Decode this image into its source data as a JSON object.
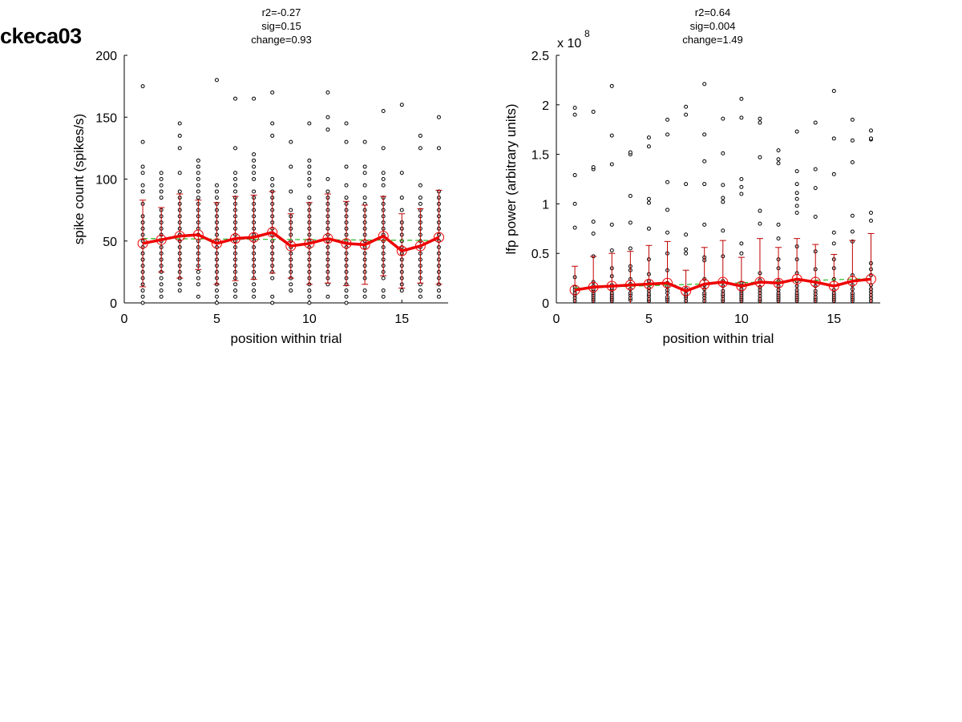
{
  "figure": {
    "title": "ckeca03"
  },
  "colors": {
    "mean_line": "#ee0000",
    "error_bar": "#c00000",
    "trend": "#22bb22",
    "point_edge": "#000000",
    "point_fill": "#ffffff"
  },
  "chart_data": [
    {
      "type": "scatter",
      "id": "spike",
      "title_lines": [
        "r2=-0.27",
        "sig=0.15",
        "change=0.93"
      ],
      "xlabel": "position within trial",
      "ylabel": "spike count (spikes/s)",
      "exponent_label": "",
      "xlim": [
        0,
        17.5
      ],
      "ylim": [
        0,
        200
      ],
      "xticks": [
        0,
        5,
        10,
        15
      ],
      "yticks": [
        0,
        50,
        100,
        150,
        200
      ],
      "ytick_labels": [
        "0",
        "50",
        "100",
        "150",
        "200"
      ],
      "x": [
        1,
        2,
        3,
        4,
        5,
        6,
        7,
        8,
        9,
        10,
        11,
        12,
        13,
        14,
        15,
        16,
        17
      ],
      "series": [
        {
          "name": "",
          "role": "mean",
          "values": [
            48,
            51,
            54,
            55,
            48,
            52,
            53,
            57,
            46,
            48,
            52,
            48,
            47,
            54,
            42,
            46,
            53
          ]
        },
        {
          "name": "",
          "role": "std",
          "values": [
            35,
            26,
            34,
            28,
            33,
            34,
            34,
            33,
            26,
            33,
            36,
            34,
            32,
            32,
            30,
            30,
            38
          ]
        },
        {
          "name": "",
          "role": "trend",
          "values": [
            52,
            51.9,
            51.8,
            51.7,
            51.6,
            51.5,
            51.4,
            51.3,
            51.2,
            51.1,
            51,
            50.9,
            50.8,
            50.7,
            50.6,
            50.5,
            50.4
          ]
        }
      ],
      "raw": [
        [
          0,
          5,
          10,
          15,
          20,
          25,
          30,
          35,
          40,
          45,
          50,
          55,
          60,
          65,
          70,
          80,
          90,
          95,
          105,
          110,
          130,
          175
        ],
        [
          5,
          10,
          15,
          20,
          25,
          30,
          35,
          40,
          45,
          50,
          55,
          60,
          65,
          70,
          75,
          85,
          90,
          95,
          100,
          105
        ],
        [
          10,
          15,
          20,
          25,
          30,
          35,
          40,
          45,
          50,
          55,
          60,
          65,
          70,
          75,
          80,
          85,
          90,
          105,
          125,
          135,
          145
        ],
        [
          5,
          15,
          20,
          25,
          30,
          35,
          40,
          45,
          50,
          55,
          60,
          65,
          70,
          75,
          80,
          85,
          90,
          95,
          100,
          105,
          110,
          115
        ],
        [
          0,
          5,
          10,
          15,
          20,
          25,
          30,
          35,
          40,
          45,
          50,
          55,
          60,
          65,
          70,
          75,
          80,
          85,
          90,
          95,
          180
        ],
        [
          5,
          10,
          15,
          20,
          25,
          30,
          35,
          40,
          45,
          50,
          55,
          60,
          65,
          70,
          75,
          80,
          85,
          90,
          95,
          100,
          105,
          125,
          165
        ],
        [
          5,
          10,
          15,
          20,
          25,
          30,
          35,
          40,
          45,
          50,
          55,
          60,
          65,
          70,
          75,
          80,
          85,
          90,
          100,
          105,
          110,
          115,
          120,
          165
        ],
        [
          0,
          5,
          20,
          25,
          30,
          35,
          40,
          45,
          50,
          55,
          60,
          65,
          70,
          75,
          80,
          85,
          90,
          95,
          100,
          135,
          145,
          170
        ],
        [
          10,
          15,
          20,
          25,
          30,
          35,
          40,
          45,
          50,
          55,
          60,
          65,
          70,
          75,
          90,
          110,
          130
        ],
        [
          0,
          5,
          10,
          15,
          20,
          25,
          30,
          35,
          40,
          45,
          50,
          55,
          60,
          65,
          70,
          75,
          80,
          85,
          95,
          100,
          105,
          110,
          115,
          145
        ],
        [
          5,
          15,
          20,
          25,
          30,
          35,
          40,
          45,
          50,
          55,
          60,
          65,
          70,
          75,
          80,
          85,
          90,
          100,
          140,
          150,
          170
        ],
        [
          0,
          5,
          10,
          15,
          20,
          25,
          30,
          35,
          40,
          45,
          50,
          55,
          60,
          65,
          70,
          75,
          80,
          85,
          95,
          110,
          130,
          145
        ],
        [
          5,
          10,
          20,
          25,
          30,
          35,
          40,
          45,
          50,
          55,
          60,
          65,
          70,
          75,
          80,
          85,
          95,
          105,
          110,
          130
        ],
        [
          5,
          10,
          20,
          25,
          30,
          35,
          40,
          45,
          50,
          55,
          60,
          65,
          70,
          75,
          80,
          85,
          95,
          100,
          105,
          125,
          155
        ],
        [
          10,
          15,
          20,
          25,
          30,
          35,
          40,
          45,
          50,
          55,
          60,
          65,
          75,
          85,
          105,
          160
        ],
        [
          5,
          10,
          15,
          20,
          25,
          30,
          35,
          40,
          45,
          50,
          55,
          60,
          65,
          70,
          75,
          80,
          85,
          95,
          125,
          135
        ],
        [
          5,
          10,
          15,
          20,
          25,
          30,
          35,
          40,
          45,
          50,
          55,
          60,
          65,
          70,
          75,
          80,
          85,
          90,
          125,
          150
        ]
      ]
    },
    {
      "type": "scatter",
      "id": "lfp",
      "title_lines": [
        "r2=0.64",
        "sig=0.004",
        "change=1.49"
      ],
      "xlabel": "position within trial",
      "ylabel": "lfp power (arbitrary units)",
      "exponent_label": "x 10",
      "exponent_power": "8",
      "xlim": [
        0,
        17.5
      ],
      "ylim": [
        0,
        2.5
      ],
      "xticks": [
        0,
        5,
        10,
        15
      ],
      "yticks": [
        0,
        0.5,
        1,
        1.5,
        2,
        2.5
      ],
      "ytick_labels": [
        "0",
        "0.5",
        "1",
        "1.5",
        "2",
        "2.5"
      ],
      "x": [
        1,
        2,
        3,
        4,
        5,
        6,
        7,
        8,
        9,
        10,
        11,
        12,
        13,
        14,
        15,
        16,
        17
      ],
      "series": [
        {
          "name": "",
          "role": "mean",
          "values": [
            0.13,
            0.16,
            0.17,
            0.18,
            0.19,
            0.2,
            0.12,
            0.19,
            0.21,
            0.17,
            0.21,
            0.2,
            0.24,
            0.21,
            0.17,
            0.22,
            0.24
          ]
        },
        {
          "name": "",
          "role": "std",
          "values": [
            0.24,
            0.31,
            0.33,
            0.34,
            0.39,
            0.42,
            0.21,
            0.37,
            0.42,
            0.29,
            0.44,
            0.36,
            0.41,
            0.38,
            0.32,
            0.41,
            0.46
          ]
        },
        {
          "name": "",
          "role": "trend",
          "values": [
            0.15,
            0.156,
            0.162,
            0.168,
            0.174,
            0.18,
            0.186,
            0.192,
            0.198,
            0.204,
            0.21,
            0.216,
            0.222,
            0.228,
            0.234,
            0.24,
            0.246
          ]
        }
      ],
      "raw": [
        [
          0.02,
          0.05,
          0.08,
          0.1,
          0.13,
          0.16,
          0.26,
          0.76,
          1.0,
          1.29,
          1.9,
          1.97
        ],
        [
          0.02,
          0.04,
          0.06,
          0.08,
          0.1,
          0.12,
          0.14,
          0.17,
          0.21,
          0.47,
          0.7,
          0.82,
          1.35,
          1.37,
          1.93
        ],
        [
          0.02,
          0.04,
          0.06,
          0.08,
          0.1,
          0.13,
          0.15,
          0.18,
          0.27,
          0.35,
          0.53,
          0.79,
          1.4,
          1.69,
          2.19
        ],
        [
          0.03,
          0.05,
          0.08,
          0.1,
          0.14,
          0.19,
          0.24,
          0.33,
          0.37,
          0.55,
          0.81,
          1.08,
          1.5,
          1.52
        ],
        [
          0.02,
          0.04,
          0.07,
          0.09,
          0.12,
          0.15,
          0.19,
          0.22,
          0.29,
          0.44,
          0.75,
          1.01,
          1.05,
          1.58,
          1.67
        ],
        [
          0.02,
          0.04,
          0.06,
          0.1,
          0.13,
          0.17,
          0.2,
          0.33,
          0.5,
          0.71,
          0.94,
          1.22,
          1.7,
          1.85
        ],
        [
          0.02,
          0.05,
          0.07,
          0.09,
          0.12,
          0.14,
          0.5,
          0.54,
          0.69,
          1.2,
          1.9,
          1.98
        ],
        [
          0.02,
          0.05,
          0.08,
          0.1,
          0.14,
          0.18,
          0.24,
          0.43,
          0.46,
          0.79,
          1.2,
          1.43,
          1.7,
          2.21
        ],
        [
          0.02,
          0.04,
          0.07,
          0.09,
          0.12,
          0.17,
          0.22,
          0.47,
          0.73,
          1.02,
          1.06,
          1.19,
          1.51,
          1.86
        ],
        [
          0.02,
          0.04,
          0.06,
          0.08,
          0.1,
          0.12,
          0.14,
          0.2,
          0.5,
          0.6,
          1.1,
          1.17,
          1.25,
          1.87,
          2.06
        ],
        [
          0.02,
          0.04,
          0.07,
          0.1,
          0.13,
          0.16,
          0.23,
          0.3,
          0.8,
          0.93,
          1.47,
          1.82,
          1.86
        ],
        [
          0.02,
          0.04,
          0.06,
          0.08,
          0.1,
          0.13,
          0.17,
          0.22,
          0.35,
          0.44,
          0.65,
          0.79,
          1.41,
          1.45,
          1.54
        ],
        [
          0.02,
          0.04,
          0.06,
          0.08,
          0.1,
          0.13,
          0.17,
          0.22,
          0.3,
          0.44,
          0.57,
          0.91,
          0.98,
          1.05,
          1.11,
          1.2,
          1.33,
          1.73
        ],
        [
          0.02,
          0.04,
          0.06,
          0.09,
          0.12,
          0.17,
          0.21,
          0.34,
          0.52,
          0.87,
          1.16,
          1.35,
          1.82
        ],
        [
          0.02,
          0.04,
          0.06,
          0.08,
          0.1,
          0.13,
          0.24,
          0.35,
          0.44,
          0.6,
          0.71,
          1.3,
          1.66,
          2.14
        ],
        [
          0.02,
          0.04,
          0.06,
          0.08,
          0.1,
          0.14,
          0.18,
          0.28,
          0.62,
          0.72,
          0.88,
          1.42,
          1.64,
          1.85
        ],
        [
          0.02,
          0.05,
          0.08,
          0.11,
          0.14,
          0.18,
          0.28,
          0.34,
          0.4,
          0.83,
          0.91,
          1.65,
          1.66,
          1.74
        ]
      ]
    }
  ]
}
